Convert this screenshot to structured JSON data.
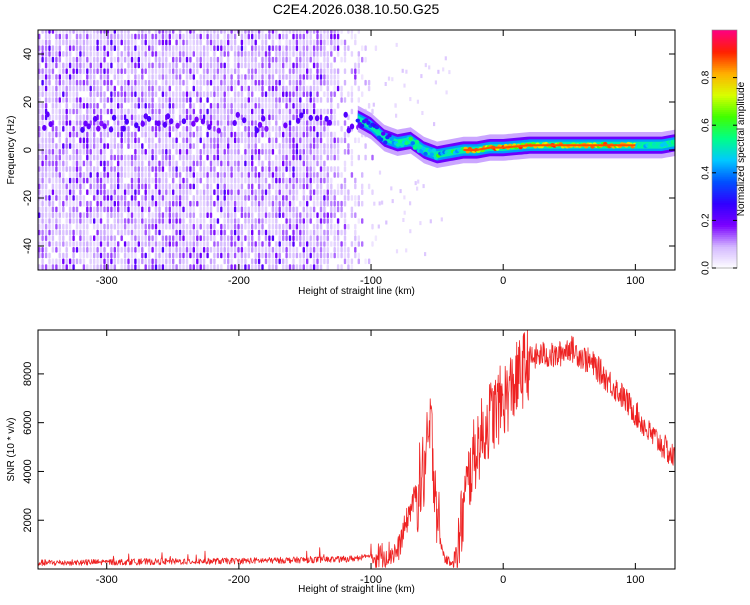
{
  "title": "C2E4.2026.038.10.50.G25",
  "colorbar": {
    "label": "Normalized spectral amplitude",
    "ticks": [
      "0.0",
      "0.2",
      "0.4",
      "0.6",
      "0.8"
    ],
    "tick_values": [
      0.0,
      0.2,
      0.4,
      0.6,
      0.8
    ],
    "range": [
      0,
      1
    ],
    "colors": [
      "#ffffff",
      "#d4b8ff",
      "#7a00ff",
      "#3000ff",
      "#0050ff",
      "#00c8ff",
      "#00ff88",
      "#40ff00",
      "#d8ff00",
      "#ffb000",
      "#ff2000",
      "#ff0080"
    ]
  },
  "chart_data": [
    {
      "type": "heatmap",
      "panel": "spectrogram",
      "title": "C2E4.2026.038.10.50.G25",
      "xlabel": "Height of straight line (km)",
      "ylabel": "Frequency (Hz)",
      "xlim": [
        -352,
        130
      ],
      "ylim": [
        -50,
        50
      ],
      "x_ticks": [
        -300,
        -200,
        -100,
        0,
        100
      ],
      "x_tick_labels": [
        "-300",
        "-200",
        "-100",
        "0",
        "100"
      ],
      "y_ticks": [
        -40,
        -20,
        0,
        20,
        40
      ],
      "y_tick_labels": [
        "-40",
        "-20",
        "0",
        "20",
        "40"
      ],
      "noise_region_x": [
        -352,
        -100
      ],
      "signal_track": {
        "x": [
          -110,
          -100,
          -90,
          -80,
          -70,
          -60,
          -50,
          -40,
          -30,
          -20,
          -10,
          0,
          20,
          40,
          60,
          80,
          100,
          120,
          130
        ],
        "frequency": [
          13,
          10,
          5,
          3,
          4,
          0,
          -2,
          -1,
          0,
          0,
          1,
          1,
          2,
          2,
          2,
          2,
          2,
          2,
          3
        ]
      },
      "peak_amplitude_x_range": [
        -30,
        100
      ]
    },
    {
      "type": "line",
      "panel": "snr",
      "xlabel": "Height of straight line (km)",
      "ylabel": "SNR (10 * v/v)",
      "xlim": [
        -352,
        130
      ],
      "ylim": [
        0,
        9800
      ],
      "x_ticks": [
        -300,
        -200,
        -100,
        0,
        100
      ],
      "x_tick_labels": [
        "-300",
        "-200",
        "-100",
        "0",
        "100"
      ],
      "y_ticks": [
        2000,
        4000,
        6000,
        8000
      ],
      "y_tick_labels": [
        "2000",
        "4000",
        "6000",
        "8000"
      ],
      "series": [
        {
          "name": "SNR",
          "color": "#ee2222",
          "x": [
            -352,
            -300,
            -200,
            -120,
            -100,
            -80,
            -70,
            -62,
            -58,
            -55,
            -52,
            -48,
            -44,
            -40,
            -35,
            -30,
            -25,
            -20,
            -10,
            0,
            10,
            20,
            30,
            40,
            50,
            60,
            70,
            80,
            90,
            100,
            110,
            120,
            130
          ],
          "y": [
            250,
            280,
            330,
            400,
            500,
            700,
            2500,
            3600,
            4500,
            5800,
            4000,
            1200,
            400,
            300,
            500,
            2500,
            4000,
            5000,
            6200,
            6900,
            7700,
            8600,
            8800,
            8700,
            9100,
            8700,
            8300,
            7700,
            7100,
            6400,
            5600,
            5100,
            4500
          ]
        }
      ]
    }
  ]
}
